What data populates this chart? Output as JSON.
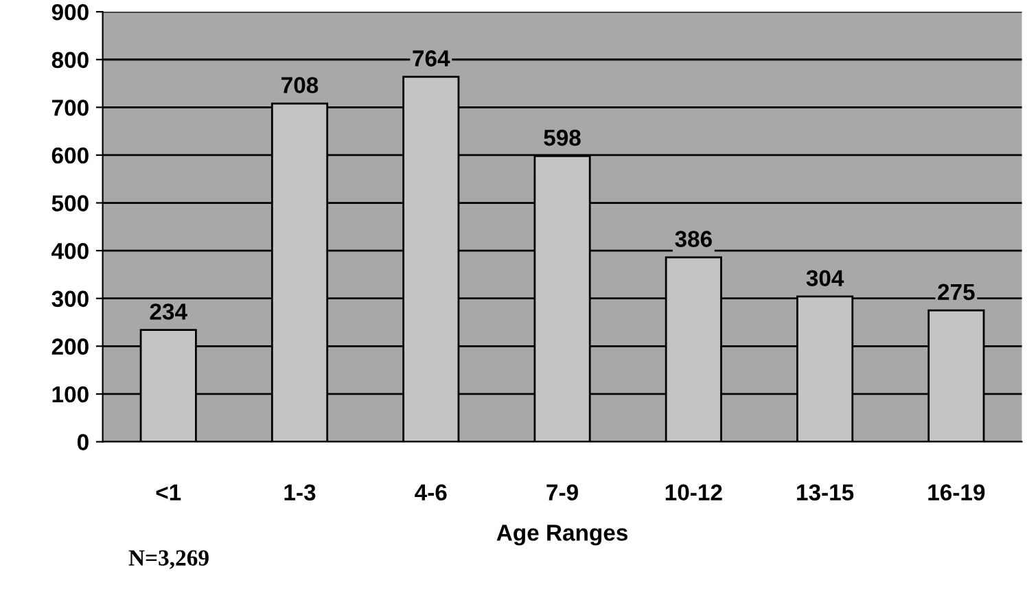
{
  "chart_data": {
    "type": "bar",
    "xlabel": "Age Ranges",
    "categories": [
      "<1",
      "1-3",
      "4-6",
      "7-9",
      "10-12",
      "13-15",
      "16-19"
    ],
    "values": [
      234,
      708,
      764,
      598,
      386,
      304,
      275
    ],
    "color": "#c4c4c4",
    "ylim": [
      0,
      900
    ],
    "yticks": [
      0,
      100,
      200,
      300,
      400,
      500,
      600,
      700,
      800,
      900
    ],
    "grid": "y",
    "data_labels": true,
    "annotations": [
      "N=3,269"
    ]
  }
}
